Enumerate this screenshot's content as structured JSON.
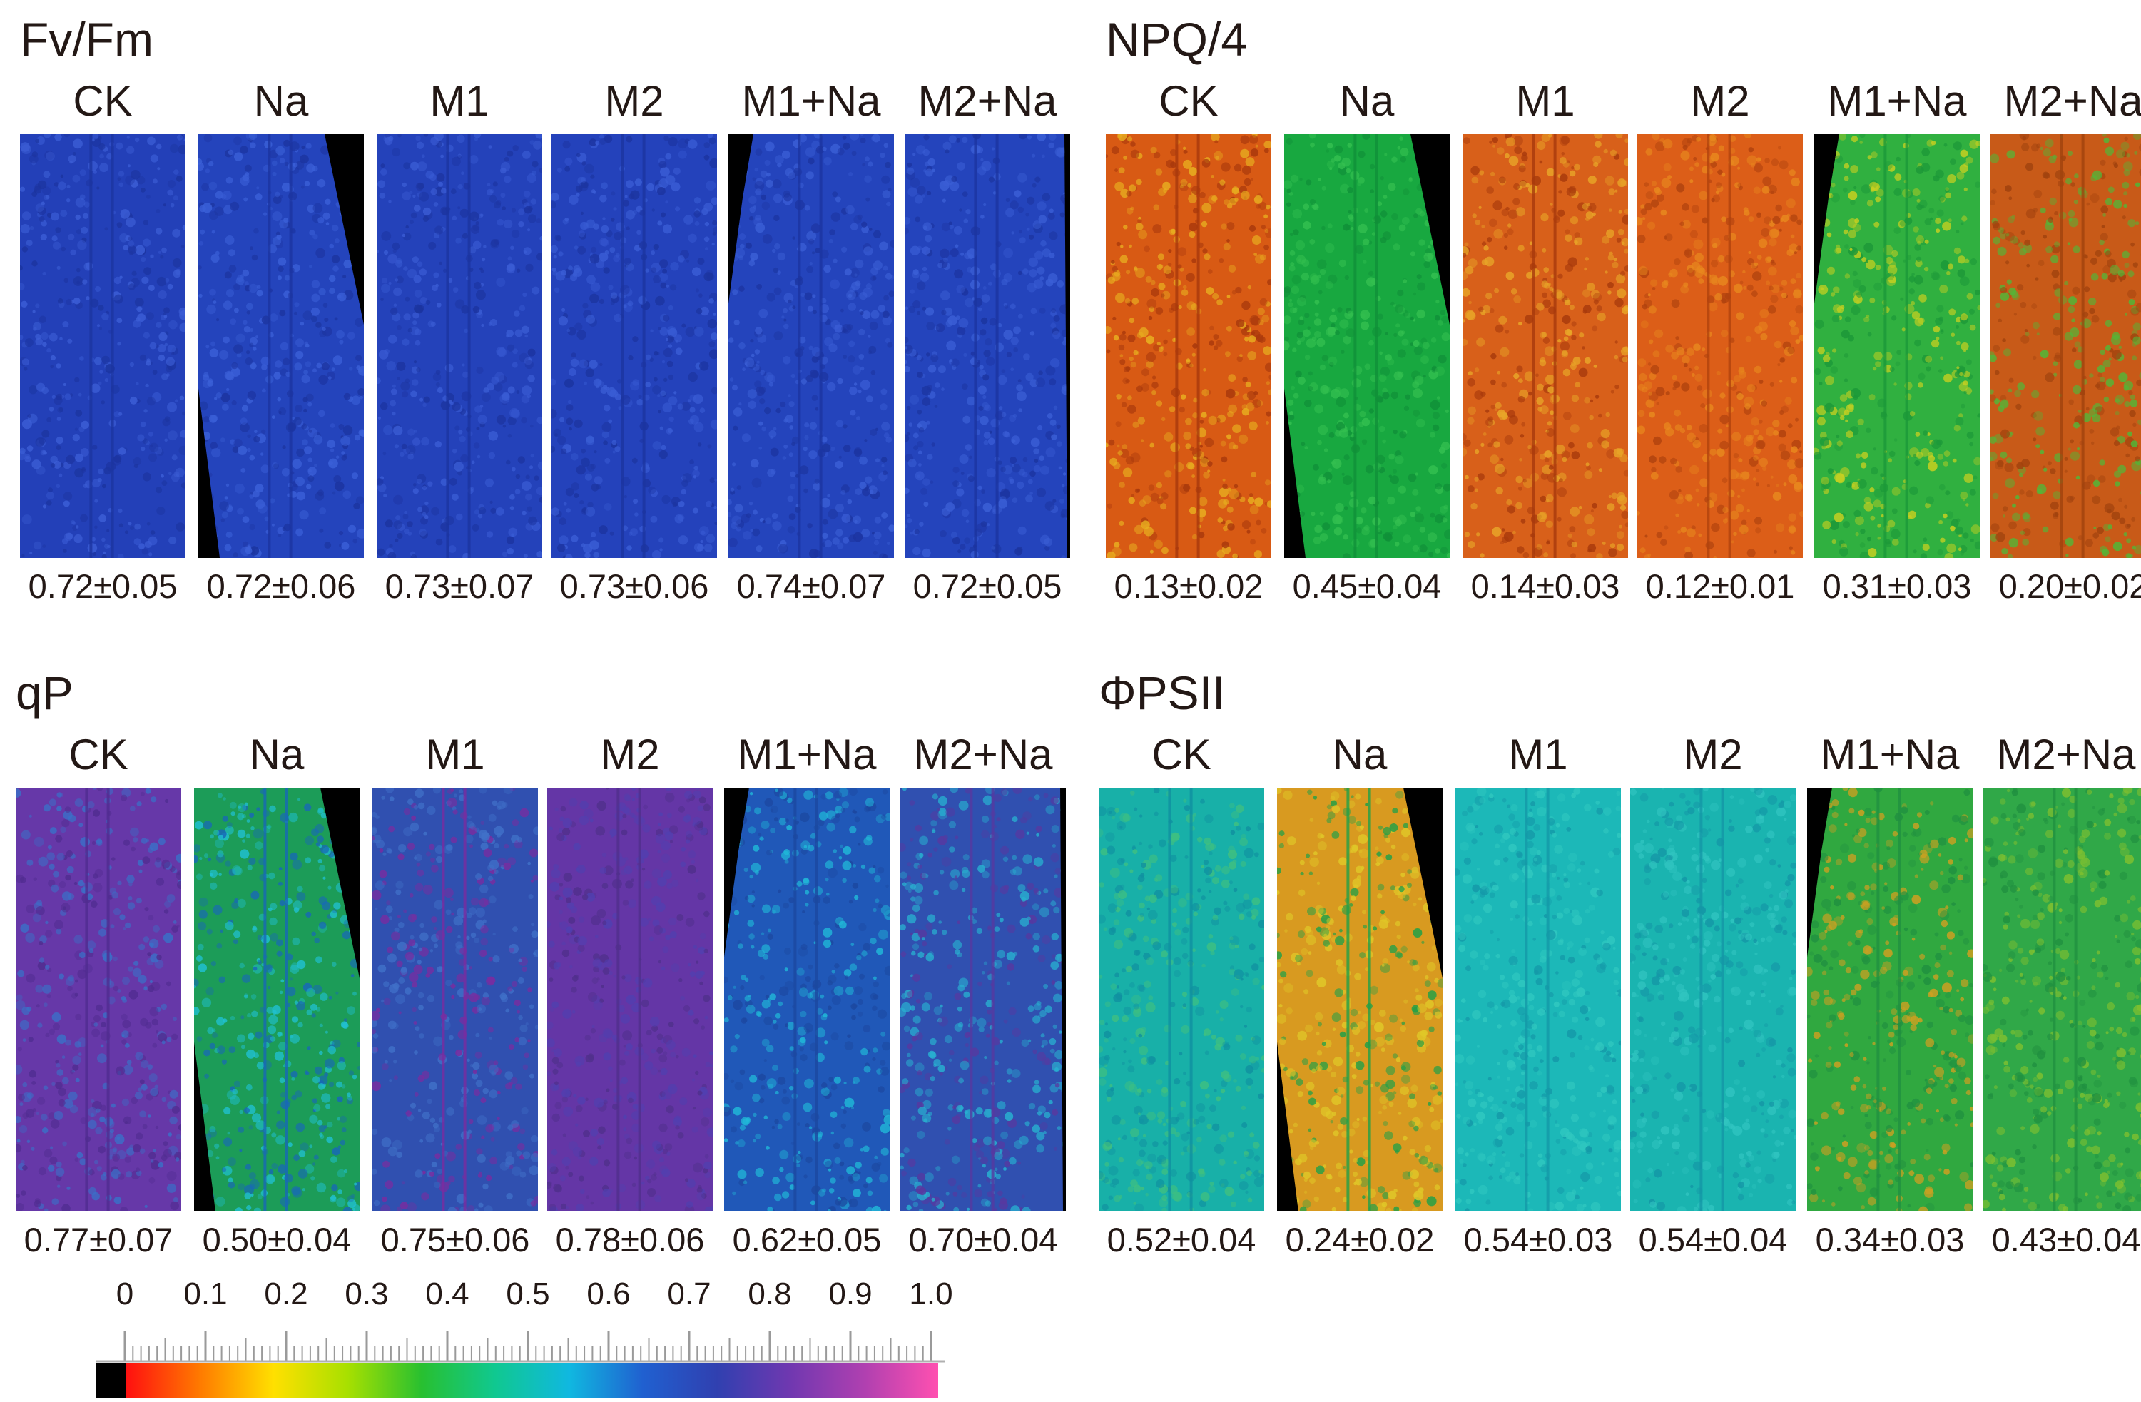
{
  "panels": [
    {
      "title": "Fv/Fm",
      "leaf_shape": [
        "full",
        "right-cut",
        "full",
        "full",
        "left-cut",
        "full-right-black"
      ],
      "colors": [
        {
          "base": "#2340b8",
          "spots": "#3c5ed6",
          "mid": "#1c34a0"
        },
        {
          "base": "#2444bc",
          "spots": "#3b60d8",
          "mid": "#1c34a0"
        },
        {
          "base": "#2442ba",
          "spots": "#3a5cd4",
          "mid": "#1c34a0"
        },
        {
          "base": "#2442bb",
          "spots": "#3a5dd5",
          "mid": "#1c34a0"
        },
        {
          "base": "#2444bc",
          "spots": "#3b5fd6",
          "mid": "#1c34a0"
        },
        {
          "base": "#2444bc",
          "spots": "#3b5fd6",
          "mid": "#1c34a0"
        }
      ],
      "treatments": [
        "CK",
        "Na",
        "M1",
        "M2",
        "M1+Na",
        "M2+Na"
      ],
      "values": [
        "0.72±0.05",
        "0.72±0.06",
        "0.73±0.07",
        "0.73±0.06",
        "0.74±0.07",
        "0.72±0.05"
      ]
    },
    {
      "title": "NPQ/4",
      "leaf_shape": [
        "full",
        "right-cut",
        "full",
        "full",
        "left-cut",
        "full-right-black"
      ],
      "colors": [
        {
          "base": "#d85a14",
          "spots": "#e8b020",
          "mid": "#a8380c"
        },
        {
          "base": "#18a840",
          "spots": "#34c050",
          "mid": "#109038"
        },
        {
          "base": "#d8601a",
          "spots": "#e8a628",
          "mid": "#a83a0c"
        },
        {
          "base": "#dc5e18",
          "spots": "#e8881e",
          "mid": "#b0420e"
        },
        {
          "base": "#30b040",
          "spots": "#c8d020",
          "mid": "#1c9838"
        },
        {
          "base": "#c85a18",
          "spots": "#50b838",
          "mid": "#a0420e"
        }
      ],
      "treatments": [
        "CK",
        "Na",
        "M1",
        "M2",
        "M1+Na",
        "M2+Na"
      ],
      "values": [
        "0.13±0.02",
        "0.45±0.04",
        "0.14±0.03",
        "0.12±0.01",
        "0.31±0.03",
        "0.20±0.02"
      ]
    },
    {
      "title": "qP",
      "leaf_shape": [
        "full",
        "right-cut",
        "full",
        "full",
        "left-cut",
        "full-right-black"
      ],
      "colors": [
        {
          "base": "#6638a8",
          "spots": "#3a70c8",
          "mid": "#502c90"
        },
        {
          "base": "#1c9c58",
          "spots": "#20c0d0",
          "mid": "#1868b8"
        },
        {
          "base": "#3050b0",
          "spots": "#4070c8",
          "mid": "#7a2ca0"
        },
        {
          "base": "#6436a6",
          "spots": "#5040b0",
          "mid": "#50308c"
        },
        {
          "base": "#2058b8",
          "spots": "#20b8d8",
          "mid": "#1c48a0"
        },
        {
          "base": "#3050b0",
          "spots": "#28b0d0",
          "mid": "#5838a0"
        }
      ],
      "treatments": [
        "CK",
        "Na",
        "M1",
        "M2",
        "M1+Na",
        "M2+Na"
      ],
      "values": [
        "0.77±0.07",
        "0.50±0.04",
        "0.75±0.06",
        "0.78±0.06",
        "0.62±0.05",
        "0.70±0.04"
      ]
    },
    {
      "title": "ΦPSII",
      "leaf_shape": [
        "full",
        "right-cut",
        "full",
        "full",
        "left-cut",
        "full-right-black"
      ],
      "colors": [
        {
          "base": "#18b0a8",
          "spots": "#40c080",
          "mid": "#1090a0"
        },
        {
          "base": "#d89a20",
          "spots": "#e0c828",
          "mid": "#20a048"
        },
        {
          "base": "#1cb8b8",
          "spots": "#30c8c0",
          "mid": "#1498a8"
        },
        {
          "base": "#1ab4b0",
          "spots": "#30c4c0",
          "mid": "#1496a6"
        },
        {
          "base": "#30a840",
          "spots": "#d0a020",
          "mid": "#209040"
        },
        {
          "base": "#30a848",
          "spots": "#80c030",
          "mid": "#209040"
        }
      ],
      "treatments": [
        "CK",
        "Na",
        "M1",
        "M2",
        "M1+Na",
        "M2+Na"
      ],
      "values": [
        "0.52±0.04",
        "0.24±0.02",
        "0.54±0.03",
        "0.54±0.04",
        "0.34±0.03",
        "0.43±0.04"
      ]
    }
  ],
  "scale": {
    "ticks": [
      "0",
      "0.1",
      "0.2",
      "0.3",
      "0.4",
      "0.5",
      "0.6",
      "0.7",
      "0.8",
      "0.9",
      "1.0"
    ],
    "gradient": [
      "#000000",
      "#ff1010",
      "#ff7a00",
      "#ffe000",
      "#a8e000",
      "#28c030",
      "#10c890",
      "#10b8e0",
      "#2060d0",
      "#3040b0",
      "#7038b0",
      "#b040b0",
      "#ff50b0"
    ]
  }
}
